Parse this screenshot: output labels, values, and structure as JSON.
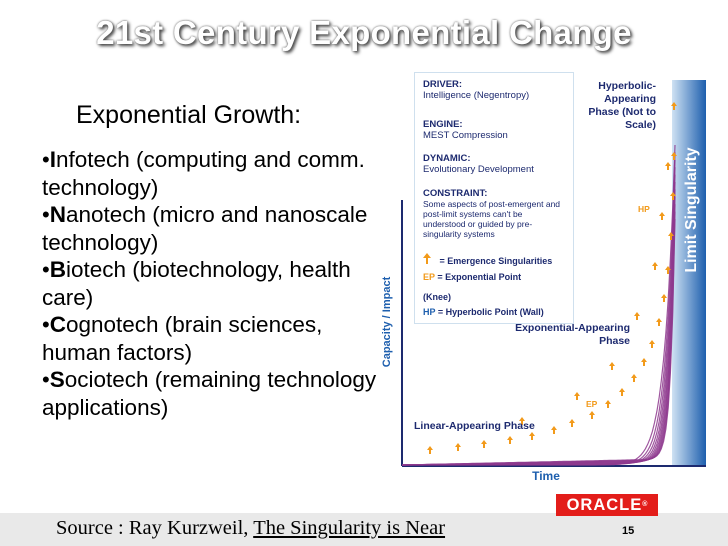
{
  "slide": {
    "title": "21st Century Exponential Change",
    "subhead": "Exponential Growth:",
    "bullets": [
      {
        "initial": "I",
        "rest": "nfotech (computing and comm. technology)"
      },
      {
        "initial": "N",
        "rest": "anotech (micro and nanoscale technology)"
      },
      {
        "initial": "B",
        "rest": "iotech (biotechnology, health care)"
      },
      {
        "initial": "C",
        "rest": "ognotech (brain sciences, human factors)"
      },
      {
        "initial": "S",
        "rest": "ociotech (remaining technology applications)"
      }
    ],
    "source_prefix": "Source : Ray Kurzweil, ",
    "source_book": "The Singularity is Near",
    "page_number": "15",
    "logo_text": "ORACLE",
    "logo_mark": "®"
  },
  "diagram": {
    "y_axis_label": "Capacity / Impact",
    "x_axis_label": "Time",
    "limit_label": "Limit Singularity",
    "phases": {
      "hyperbolic": "Hyperbolic-Appearing Phase (Not to Scale)",
      "exponential": "Exponential-Appearing Phase",
      "linear": "Linear-Appearing Phase"
    },
    "point_labels": {
      "hp": "HP",
      "ep": "EP"
    },
    "info": {
      "driver_head": "DRIVER:",
      "driver_text": "Intelligence (Negentropy)",
      "engine_head": "ENGINE:",
      "engine_text": "MEST Compression",
      "dynamic_head": "DYNAMIC:",
      "dynamic_text": "Evolutionary Development",
      "constraint_head": "CONSTRAINT:",
      "constraint_text": "Some aspects of post-emergent and post-limit systems can't be understood or guided by pre-singularity systems",
      "legend_emergence": "= Emergence Singularities",
      "legend_ep_key": "EP",
      "legend_ep": "= Exponential Point",
      "legend_knee": "(Knee)",
      "legend_hp_key": "HP",
      "legend_hp": "= Hyperbolic Point (Wall)"
    },
    "colors": {
      "curve": "#8e3a8e",
      "arrow": "#f29a1a",
      "label": "#1d2a6f",
      "limit_band_start": "#cfe2f3",
      "limit_band_end": "#1e5fae"
    }
  }
}
